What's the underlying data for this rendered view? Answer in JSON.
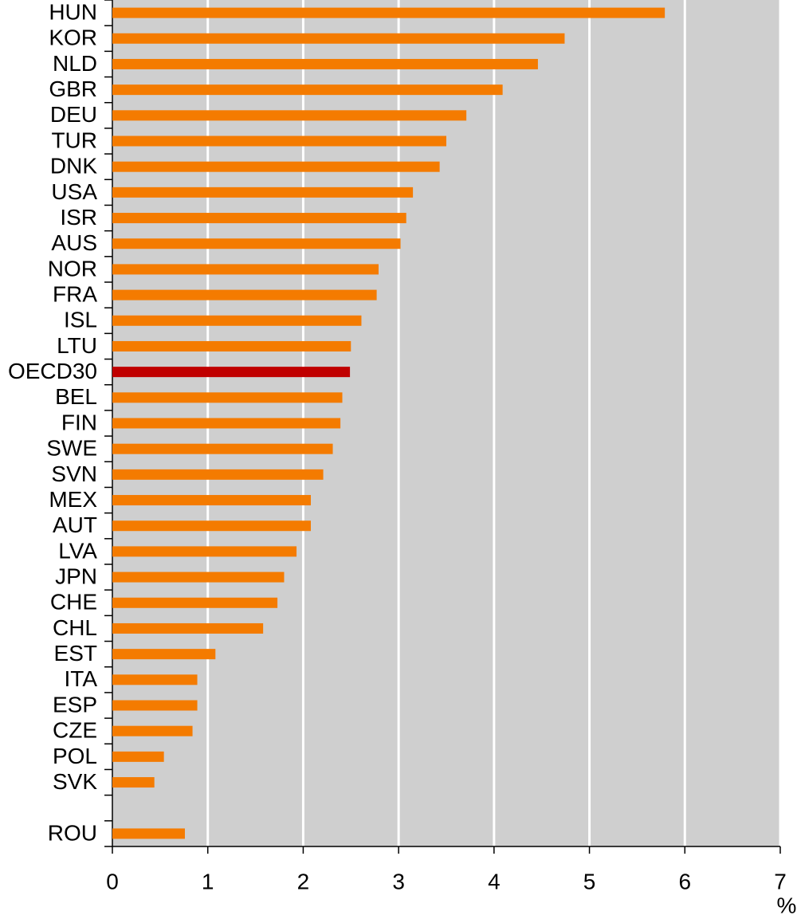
{
  "chart_data": {
    "type": "barh",
    "categories": [
      "HUN",
      "KOR",
      "NLD",
      "GBR",
      "DEU",
      "TUR",
      "DNK",
      "USA",
      "ISR",
      "AUS",
      "NOR",
      "FRA",
      "ISL",
      "LTU",
      "OECD30",
      "BEL",
      "FIN",
      "SWE",
      "SVN",
      "MEX",
      "AUT",
      "LVA",
      "JPN",
      "CHE",
      "CHL",
      "EST",
      "ITA",
      "ESP",
      "CZE",
      "POL",
      "SVK",
      null,
      "ROU"
    ],
    "values": [
      5.79,
      4.74,
      4.46,
      4.09,
      3.71,
      3.5,
      3.43,
      3.15,
      3.08,
      3.02,
      2.79,
      2.77,
      2.61,
      2.5,
      2.49,
      2.41,
      2.39,
      2.31,
      2.21,
      2.08,
      2.08,
      1.93,
      1.8,
      1.73,
      1.58,
      1.08,
      0.89,
      0.89,
      0.84,
      0.54,
      0.44,
      null,
      0.76
    ],
    "colors": [
      "#f47b00",
      "#f47b00",
      "#f47b00",
      "#f47b00",
      "#f47b00",
      "#f47b00",
      "#f47b00",
      "#f47b00",
      "#f47b00",
      "#f47b00",
      "#f47b00",
      "#f47b00",
      "#f47b00",
      "#f47b00",
      "#c00000",
      "#f47b00",
      "#f47b00",
      "#f47b00",
      "#f47b00",
      "#f47b00",
      "#f47b00",
      "#f47b00",
      "#f47b00",
      "#f47b00",
      "#f47b00",
      "#f47b00",
      "#f47b00",
      "#f47b00",
      "#f47b00",
      "#f47b00",
      "#f47b00",
      null,
      "#f47b00"
    ],
    "x_label": "%",
    "xlim": [
      0,
      7
    ],
    "xticks": [
      0,
      1,
      2,
      3,
      4,
      5,
      6,
      7
    ],
    "grid": true,
    "background": "#cfcfcf"
  }
}
